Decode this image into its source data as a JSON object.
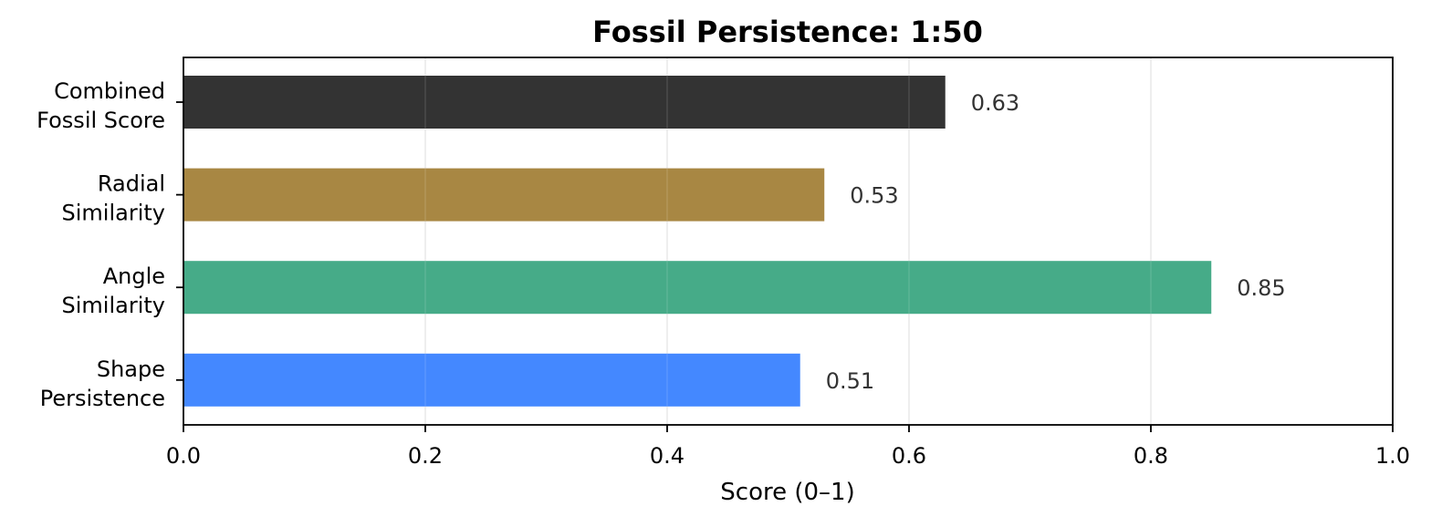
{
  "chart_data": {
    "type": "bar",
    "orientation": "horizontal",
    "title": "Fossil Persistence: 1:50",
    "xlabel": "Score (0–1)",
    "ylabel": "",
    "xlim": [
      0,
      1
    ],
    "xticks": [
      0,
      0.2,
      0.4,
      0.6,
      0.8,
      1
    ],
    "xtick_labels": [
      "0.0",
      "0.2",
      "0.4",
      "0.6",
      "0.8",
      "1.0"
    ],
    "grid": "vertical",
    "legend": "none",
    "categories": [
      [
        "Combined",
        "Fossil Score"
      ],
      [
        "Radial",
        "Similarity"
      ],
      [
        "Angle",
        "Similarity"
      ],
      [
        "Shape",
        "Persistence"
      ]
    ],
    "values": [
      0.63,
      0.53,
      0.85,
      0.51
    ],
    "value_labels": [
      "0.63",
      "0.53",
      "0.85",
      "0.51"
    ],
    "colors": [
      "#333333",
      "#a88743",
      "#46ab88",
      "#4488ff"
    ]
  }
}
